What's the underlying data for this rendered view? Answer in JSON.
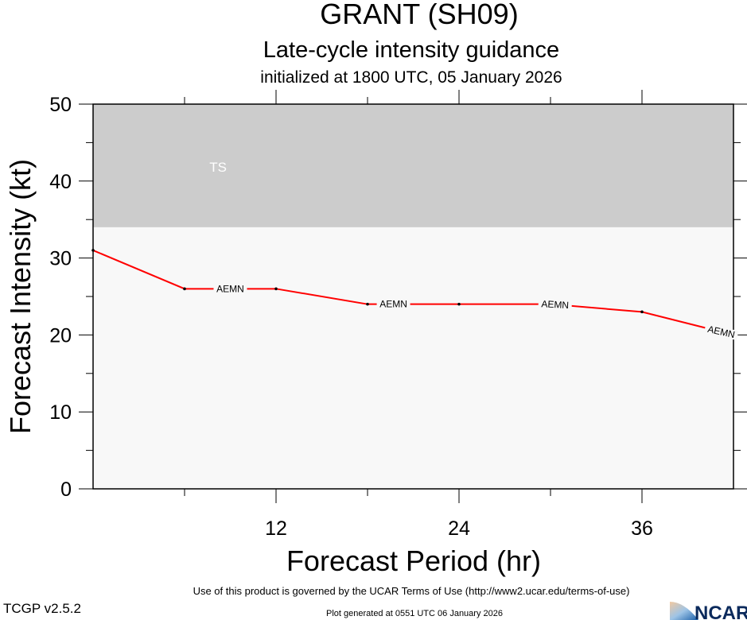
{
  "chart_data": {
    "type": "line",
    "title": "GRANT (SH09)",
    "subtitle": "Late-cycle intensity guidance",
    "subtitle2": "initialized at 1800 UTC, 05 January 2026",
    "xlabel": "Forecast Period (hr)",
    "ylabel": "Forecast Intensity (kt)",
    "xlim": [
      0,
      42
    ],
    "ylim": [
      0,
      50
    ],
    "xticks": [
      12,
      24,
      36
    ],
    "yticks": [
      0,
      10,
      20,
      30,
      40,
      50
    ],
    "bands": [
      {
        "label": "TS",
        "from": 34,
        "to": 50,
        "color": "#cccccc"
      }
    ],
    "background_color": "#f8f8f8",
    "series": [
      {
        "name": "AEMN",
        "color": "#ff0000",
        "x": [
          0,
          6,
          12,
          18,
          24,
          30,
          36,
          42
        ],
        "y": [
          31,
          26,
          26,
          24,
          24,
          24,
          23,
          20
        ]
      }
    ]
  },
  "footer": {
    "terms": "Use of this product is governed by the UCAR Terms of Use (http://www2.ucar.edu/terms-of-use)",
    "version": "TCGP v2.5.2",
    "generated": "Plot generated at 0551 UTC   06 January 2026",
    "logo": "NCAR"
  }
}
